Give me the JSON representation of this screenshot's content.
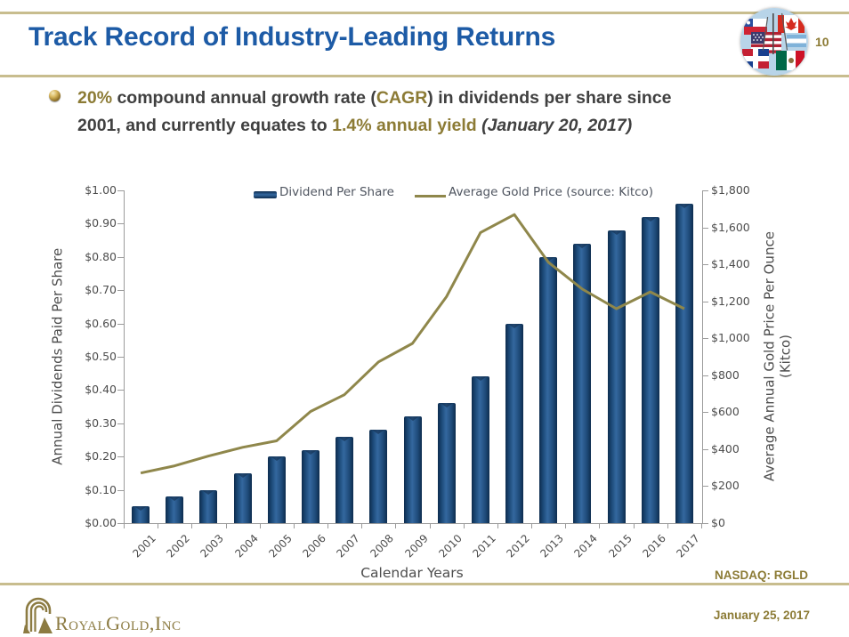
{
  "page": {
    "number": "10"
  },
  "header": {
    "title": "Track Record of Industry-Leading Returns"
  },
  "bullet": {
    "lines": [
      [
        {
          "text": "20%",
          "style": "gold"
        },
        {
          "text": " compound annual growth rate (",
          "style": "dark"
        },
        {
          "text": "CAGR",
          "style": "gold"
        },
        {
          "text": ") in dividends per share since",
          "style": "dark"
        }
      ],
      [
        {
          "text": "2001, and currently equates to ",
          "style": "dark"
        },
        {
          "text": "1.4% annual yield",
          "style": "gold"
        },
        {
          "text": " ",
          "style": "dark"
        },
        {
          "text": "(January 20, 2017)",
          "style": "dark-italic"
        }
      ]
    ]
  },
  "chart_data": {
    "type": "bar+line",
    "categories": [
      "2001",
      "2002",
      "2003",
      "2004",
      "2005",
      "2006",
      "2007",
      "2008",
      "2009",
      "2010",
      "2011",
      "2012",
      "2013",
      "2014",
      "2015",
      "2016",
      "2017"
    ],
    "series": [
      {
        "name": "Dividend Per Share",
        "type": "bar",
        "axis": "left",
        "color": "#1f4e79",
        "values": [
          0.05,
          0.08,
          0.1,
          0.15,
          0.2,
          0.22,
          0.26,
          0.28,
          0.32,
          0.36,
          0.44,
          0.6,
          0.8,
          0.84,
          0.88,
          0.92,
          0.96
        ]
      },
      {
        "name": "Average Gold Price (source: Kitco)",
        "type": "line",
        "axis": "right",
        "color": "#8f874b",
        "values": [
          271,
          310,
          363,
          410,
          445,
          604,
          695,
          872,
          972,
          1225,
          1572,
          1669,
          1411,
          1266,
          1160,
          1251,
          1160
        ]
      }
    ],
    "left_axis": {
      "title": "Annual Dividends Paid Per Share",
      "min": 0,
      "max": 1.0,
      "step": 0.1,
      "ticks": [
        "$1.00",
        "$0.90",
        "$0.80",
        "$0.70",
        "$0.60",
        "$0.50",
        "$0.40",
        "$0.30",
        "$0.20",
        "$0.10",
        "$0.00"
      ]
    },
    "right_axis": {
      "title_lines": [
        "Average Annual Gold Price Per Ounce",
        "(Kitco)"
      ],
      "min": 0,
      "max": 1800,
      "step": 200,
      "ticks": [
        "$1,800",
        "$1,600",
        "$1,400",
        "$1,200",
        "$1,000",
        "$800",
        "$600",
        "$400",
        "$200",
        "$0"
      ]
    },
    "x_axis": {
      "title": "Calendar Years"
    },
    "legend": {
      "position": "top",
      "entries": [
        "Dividend Per Share",
        "Average Gold Price (source: Kitco)"
      ]
    },
    "grid": false
  },
  "footer": {
    "nasdaq": "NASDAQ: RGLD",
    "company": "RoyalGold,Inc",
    "date": "January 25, 2017"
  },
  "colors": {
    "title_blue": "#1d5ba6",
    "gold_text": "#8c7b35",
    "tan_rule": "#c8bd8e",
    "bar_navy": "#1f4e79",
    "line_olive": "#8f874b"
  }
}
